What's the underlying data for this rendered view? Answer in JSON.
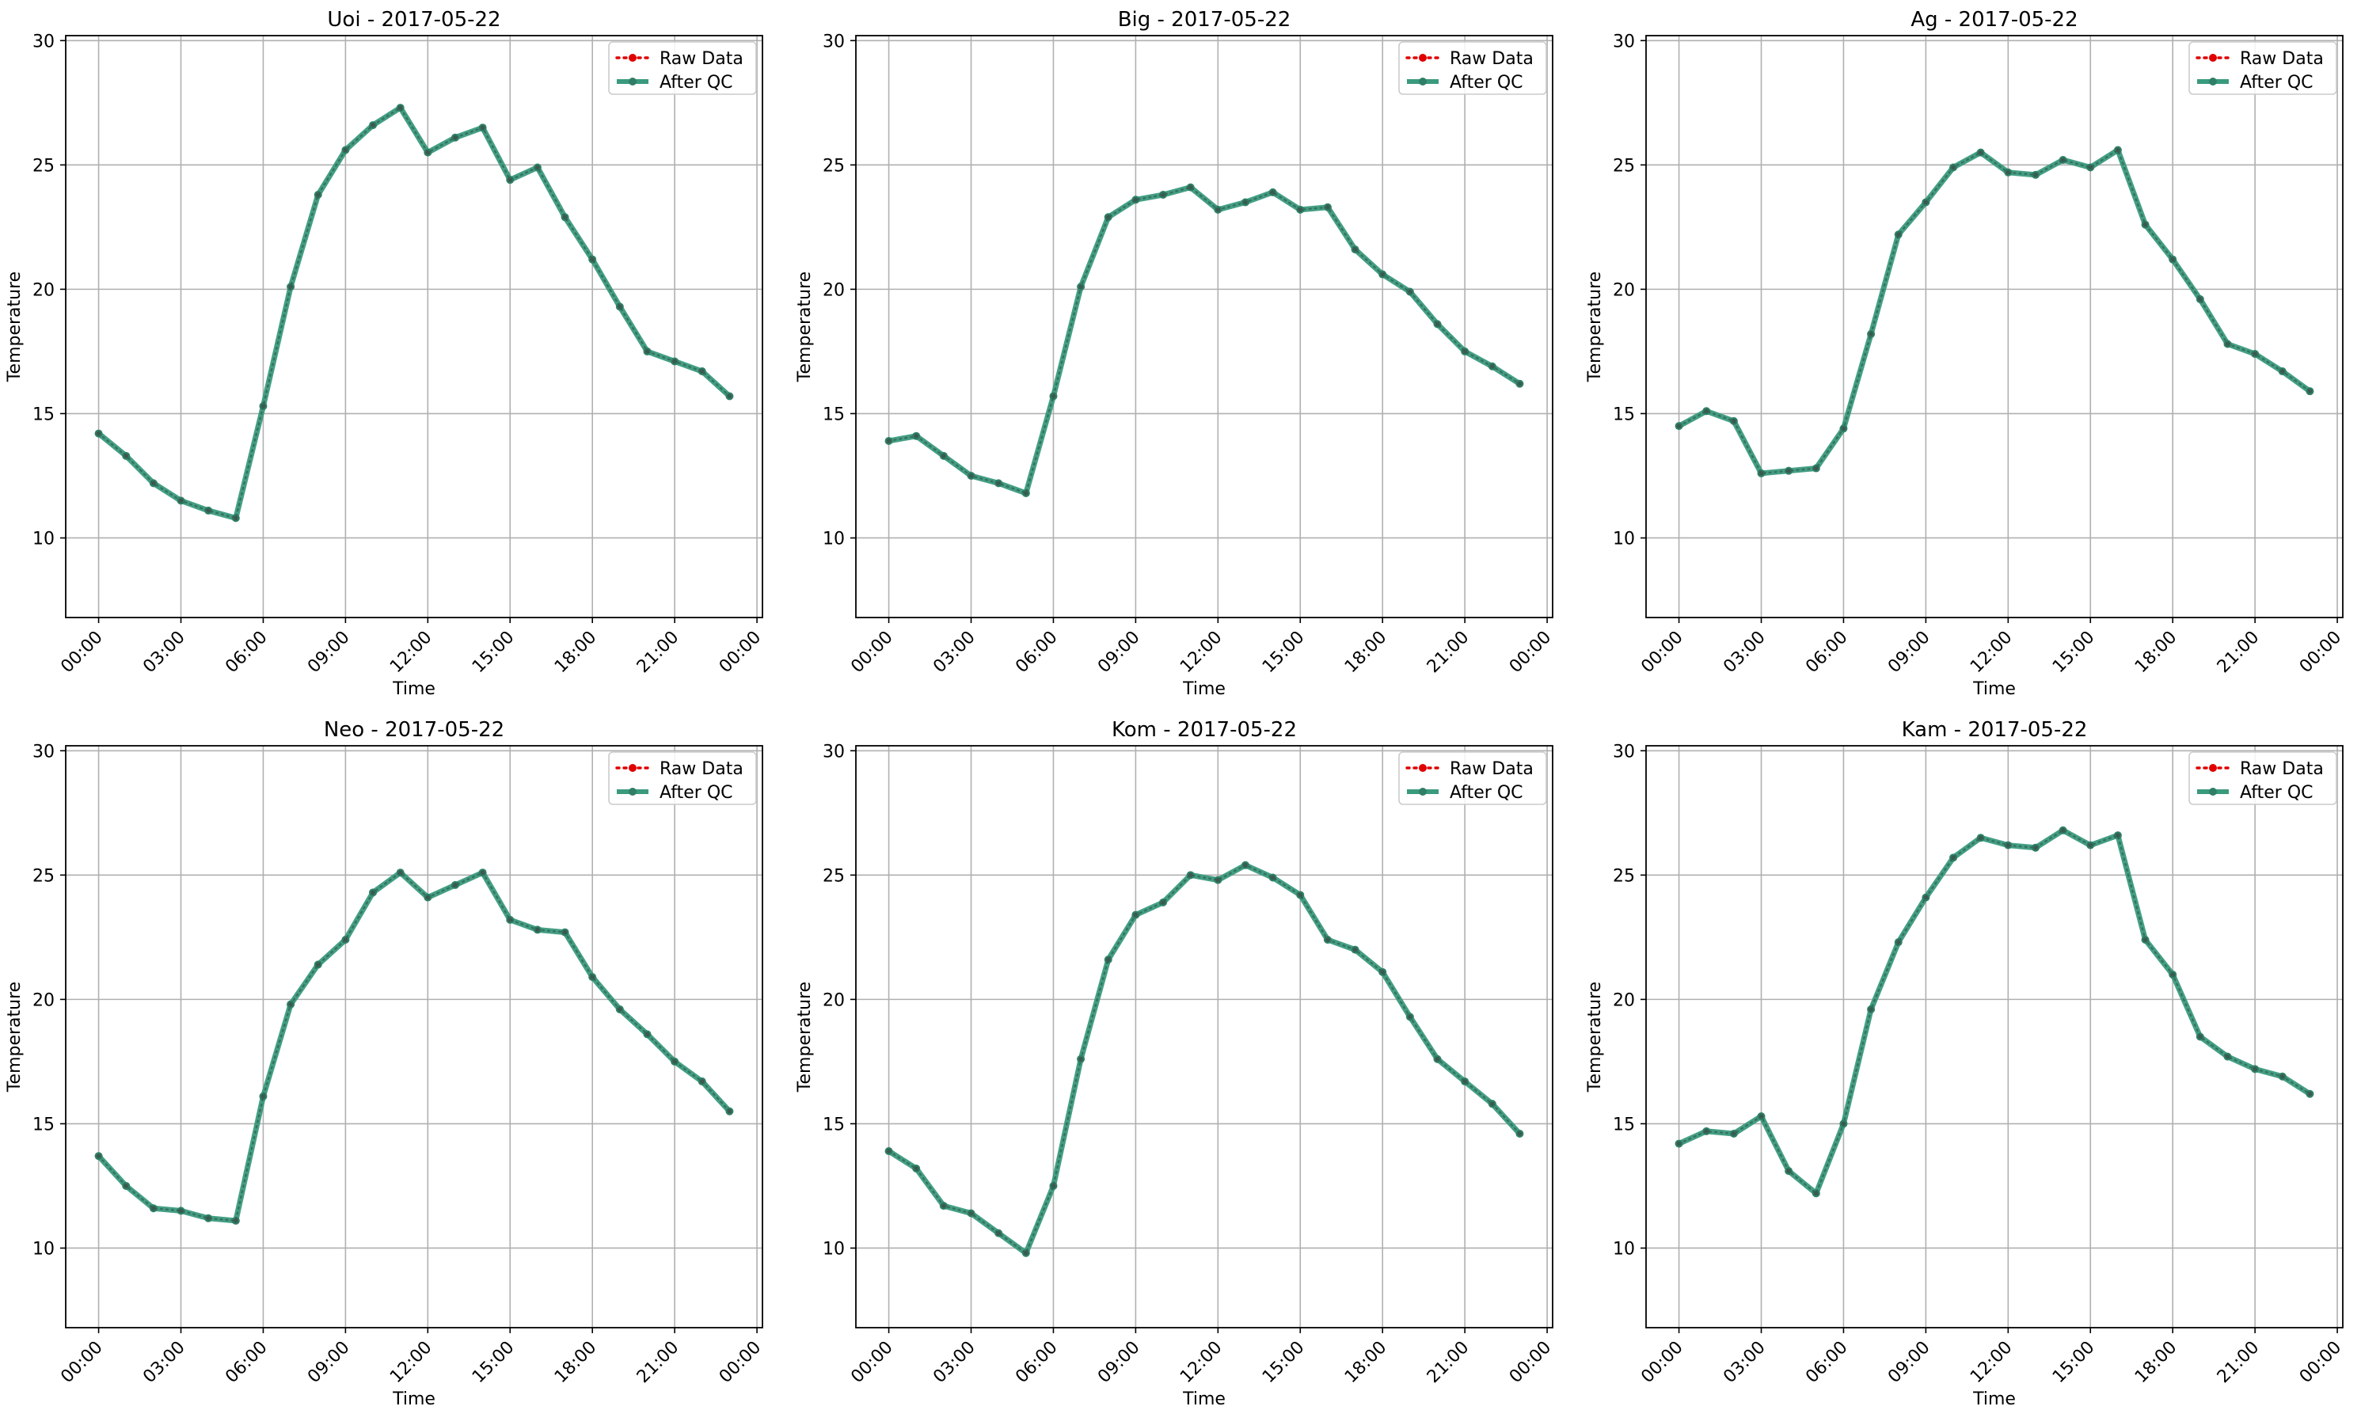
{
  "figure": {
    "legend_raw": "Raw Data",
    "legend_qc": "After QC",
    "colors": {
      "raw": "#e00000",
      "qc": "#3a9a7d",
      "qc_marker": "#2f7f66",
      "grid": "#b0b0b0"
    }
  },
  "chart_data": [
    {
      "type": "line",
      "title": "Uoi - 2017-05-22",
      "xlabel": "Time",
      "ylabel": "Temperature",
      "xlim": [
        -1.2,
        24.2
      ],
      "ylim": [
        6.8,
        30.2
      ],
      "xticks": [
        "00:00",
        "03:00",
        "06:00",
        "09:00",
        "12:00",
        "15:00",
        "18:00",
        "21:00",
        "00:00"
      ],
      "yticks": [
        "10",
        "15",
        "20",
        "25",
        "30"
      ],
      "grid": true,
      "legend": "top-right",
      "x": [
        0,
        1,
        2,
        3,
        4,
        5,
        6,
        7,
        8,
        9,
        10,
        11,
        12,
        13,
        14,
        15,
        16,
        17,
        18,
        19,
        20,
        21,
        22,
        23
      ],
      "series": [
        {
          "name": "Raw Data",
          "values": [
            14.2,
            13.3,
            12.2,
            11.5,
            11.1,
            10.8,
            15.3,
            20.1,
            23.8,
            25.6,
            26.6,
            27.3,
            25.5,
            26.1,
            26.5,
            24.4,
            24.9,
            22.9,
            21.2,
            19.3,
            17.5,
            17.1,
            16.7,
            15.7
          ]
        },
        {
          "name": "After QC",
          "values": [
            14.2,
            13.3,
            12.2,
            11.5,
            11.1,
            10.8,
            15.3,
            20.1,
            23.8,
            25.6,
            26.6,
            27.3,
            25.5,
            26.1,
            26.5,
            24.4,
            24.9,
            22.9,
            21.2,
            19.3,
            17.5,
            17.1,
            16.7,
            15.7
          ]
        }
      ]
    },
    {
      "type": "line",
      "title": "Big - 2017-05-22",
      "xlabel": "Time",
      "ylabel": "Temperature",
      "xlim": [
        -1.2,
        24.2
      ],
      "ylim": [
        6.8,
        30.2
      ],
      "xticks": [
        "00:00",
        "03:00",
        "06:00",
        "09:00",
        "12:00",
        "15:00",
        "18:00",
        "21:00",
        "00:00"
      ],
      "yticks": [
        "10",
        "15",
        "20",
        "25",
        "30"
      ],
      "grid": true,
      "legend": "top-right",
      "x": [
        0,
        1,
        2,
        3,
        4,
        5,
        6,
        7,
        8,
        9,
        10,
        11,
        12,
        13,
        14,
        15,
        16,
        17,
        18,
        19,
        20,
        21,
        22,
        23
      ],
      "series": [
        {
          "name": "Raw Data",
          "values": [
            13.9,
            14.1,
            13.3,
            12.5,
            12.2,
            11.8,
            15.7,
            20.1,
            22.9,
            23.6,
            23.8,
            24.1,
            23.2,
            23.5,
            23.9,
            23.2,
            23.3,
            21.6,
            20.6,
            19.9,
            18.6,
            17.5,
            16.9,
            16.2
          ]
        },
        {
          "name": "After QC",
          "values": [
            13.9,
            14.1,
            13.3,
            12.5,
            12.2,
            11.8,
            15.7,
            20.1,
            22.9,
            23.6,
            23.8,
            24.1,
            23.2,
            23.5,
            23.9,
            23.2,
            23.3,
            21.6,
            20.6,
            19.9,
            18.6,
            17.5,
            16.9,
            16.2
          ]
        }
      ]
    },
    {
      "type": "line",
      "title": "Ag - 2017-05-22",
      "xlabel": "Time",
      "ylabel": "Temperature",
      "xlim": [
        -1.2,
        24.2
      ],
      "ylim": [
        6.8,
        30.2
      ],
      "xticks": [
        "00:00",
        "03:00",
        "06:00",
        "09:00",
        "12:00",
        "15:00",
        "18:00",
        "21:00",
        "00:00"
      ],
      "yticks": [
        "10",
        "15",
        "20",
        "25",
        "30"
      ],
      "grid": true,
      "legend": "top-right",
      "x": [
        0,
        1,
        2,
        3,
        4,
        5,
        6,
        7,
        8,
        9,
        10,
        11,
        12,
        13,
        14,
        15,
        16,
        17,
        18,
        19,
        20,
        21,
        22,
        23
      ],
      "series": [
        {
          "name": "Raw Data",
          "values": [
            14.5,
            15.1,
            14.7,
            12.6,
            12.7,
            12.8,
            14.4,
            18.2,
            22.2,
            23.5,
            24.9,
            25.5,
            24.7,
            24.6,
            25.2,
            24.9,
            25.6,
            22.6,
            21.2,
            19.6,
            17.8,
            17.4,
            16.7,
            15.9
          ]
        },
        {
          "name": "After QC",
          "values": [
            14.5,
            15.1,
            14.7,
            12.6,
            12.7,
            12.8,
            14.4,
            18.2,
            22.2,
            23.5,
            24.9,
            25.5,
            24.7,
            24.6,
            25.2,
            24.9,
            25.6,
            22.6,
            21.2,
            19.6,
            17.8,
            17.4,
            16.7,
            15.9
          ]
        }
      ]
    },
    {
      "type": "line",
      "title": "Neo - 2017-05-22",
      "xlabel": "Time",
      "ylabel": "Temperature",
      "xlim": [
        -1.2,
        24.2
      ],
      "ylim": [
        6.8,
        30.2
      ],
      "xticks": [
        "00:00",
        "03:00",
        "06:00",
        "09:00",
        "12:00",
        "15:00",
        "18:00",
        "21:00",
        "00:00"
      ],
      "yticks": [
        "10",
        "15",
        "20",
        "25",
        "30"
      ],
      "grid": true,
      "legend": "top-right",
      "x": [
        0,
        1,
        2,
        3,
        4,
        5,
        6,
        7,
        8,
        9,
        10,
        11,
        12,
        13,
        14,
        15,
        16,
        17,
        18,
        19,
        20,
        21,
        22,
        23
      ],
      "series": [
        {
          "name": "Raw Data",
          "values": [
            13.7,
            12.5,
            11.6,
            11.5,
            11.2,
            11.1,
            16.1,
            19.8,
            21.4,
            22.4,
            24.3,
            25.1,
            24.1,
            24.6,
            25.1,
            23.2,
            22.8,
            22.7,
            20.9,
            19.6,
            18.6,
            17.5,
            16.7,
            15.5
          ]
        },
        {
          "name": "After QC",
          "values": [
            13.7,
            12.5,
            11.6,
            11.5,
            11.2,
            11.1,
            16.1,
            19.8,
            21.4,
            22.4,
            24.3,
            25.1,
            24.1,
            24.6,
            25.1,
            23.2,
            22.8,
            22.7,
            20.9,
            19.6,
            18.6,
            17.5,
            16.7,
            15.5
          ]
        }
      ]
    },
    {
      "type": "line",
      "title": "Kom - 2017-05-22",
      "xlabel": "Time",
      "ylabel": "Temperature",
      "xlim": [
        -1.2,
        24.2
      ],
      "ylim": [
        6.8,
        30.2
      ],
      "xticks": [
        "00:00",
        "03:00",
        "06:00",
        "09:00",
        "12:00",
        "15:00",
        "18:00",
        "21:00",
        "00:00"
      ],
      "yticks": [
        "10",
        "15",
        "20",
        "25",
        "30"
      ],
      "grid": true,
      "legend": "top-right",
      "x": [
        0,
        1,
        2,
        3,
        4,
        5,
        6,
        7,
        8,
        9,
        10,
        11,
        12,
        13,
        14,
        15,
        16,
        17,
        18,
        19,
        20,
        21,
        22,
        23
      ],
      "series": [
        {
          "name": "Raw Data",
          "values": [
            13.9,
            13.2,
            11.7,
            11.4,
            10.6,
            9.8,
            12.5,
            17.6,
            21.6,
            23.4,
            23.9,
            25.0,
            24.8,
            25.4,
            24.9,
            24.2,
            22.4,
            22.0,
            21.1,
            19.3,
            17.6,
            16.7,
            15.8,
            14.6
          ]
        },
        {
          "name": "After QC",
          "values": [
            13.9,
            13.2,
            11.7,
            11.4,
            10.6,
            9.8,
            12.5,
            17.6,
            21.6,
            23.4,
            23.9,
            25.0,
            24.8,
            25.4,
            24.9,
            24.2,
            22.4,
            22.0,
            21.1,
            19.3,
            17.6,
            16.7,
            15.8,
            14.6
          ]
        }
      ]
    },
    {
      "type": "line",
      "title": "Kam - 2017-05-22",
      "xlabel": "Time",
      "ylabel": "Temperature",
      "xlim": [
        -1.2,
        24.2
      ],
      "ylim": [
        6.8,
        30.2
      ],
      "xticks": [
        "00:00",
        "03:00",
        "06:00",
        "09:00",
        "12:00",
        "15:00",
        "18:00",
        "21:00",
        "00:00"
      ],
      "yticks": [
        "10",
        "15",
        "20",
        "25",
        "30"
      ],
      "grid": true,
      "legend": "top-right",
      "x": [
        0,
        1,
        2,
        3,
        4,
        5,
        6,
        7,
        8,
        9,
        10,
        11,
        12,
        13,
        14,
        15,
        16,
        17,
        18,
        19,
        20,
        21,
        22,
        23
      ],
      "series": [
        {
          "name": "Raw Data",
          "values": [
            14.2,
            14.7,
            14.6,
            15.3,
            13.1,
            12.2,
            15.0,
            19.6,
            22.3,
            24.1,
            25.7,
            26.5,
            26.2,
            26.1,
            26.8,
            26.2,
            26.6,
            22.4,
            21.0,
            18.5,
            17.7,
            17.2,
            16.9,
            16.2
          ]
        },
        {
          "name": "After QC",
          "values": [
            14.2,
            14.7,
            14.6,
            15.3,
            13.1,
            12.2,
            15.0,
            19.6,
            22.3,
            24.1,
            25.7,
            26.5,
            26.2,
            26.1,
            26.8,
            26.2,
            26.6,
            22.4,
            21.0,
            18.5,
            17.7,
            17.2,
            16.9,
            16.2
          ]
        }
      ]
    }
  ]
}
